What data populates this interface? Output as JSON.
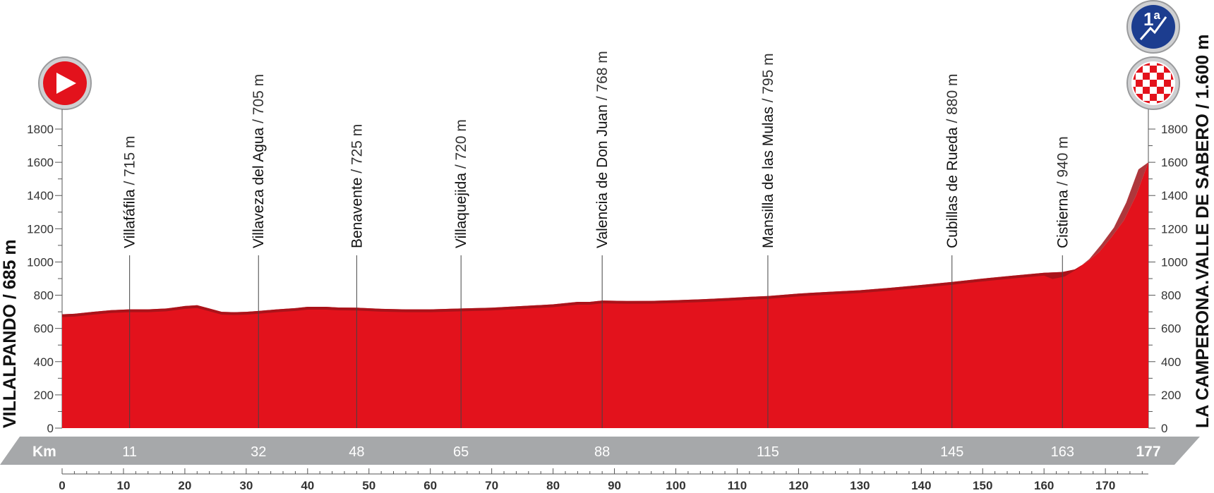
{
  "chart_data": {
    "type": "area",
    "title": "",
    "xlabel": "Km",
    "ylabel": "",
    "xlim": [
      0,
      177
    ],
    "ylim": [
      0,
      1800
    ],
    "y_ticks": [
      0,
      200,
      400,
      600,
      800,
      1000,
      1200,
      1400,
      1600,
      1800
    ],
    "x_ticks": [
      0,
      10,
      20,
      30,
      40,
      50,
      60,
      70,
      80,
      90,
      100,
      110,
      120,
      130,
      140,
      150,
      160,
      170
    ],
    "profile": {
      "x": [
        0,
        2,
        5,
        8,
        11,
        14,
        17,
        20,
        22,
        24,
        26,
        28,
        30,
        32,
        35,
        38,
        40,
        43,
        45,
        48,
        52,
        56,
        60,
        65,
        70,
        75,
        80,
        84,
        86,
        88,
        92,
        96,
        100,
        104,
        108,
        112,
        115,
        120,
        125,
        130,
        135,
        140,
        145,
        150,
        155,
        160,
        163,
        165,
        167,
        169,
        171,
        173,
        175,
        177
      ],
      "y": [
        685,
        688,
        700,
        710,
        715,
        715,
        720,
        735,
        740,
        720,
        700,
        698,
        700,
        705,
        715,
        722,
        730,
        730,
        726,
        725,
        718,
        715,
        715,
        720,
        725,
        735,
        745,
        760,
        760,
        768,
        765,
        766,
        770,
        775,
        782,
        790,
        795,
        810,
        820,
        830,
        845,
        862,
        880,
        900,
        918,
        935,
        940,
        955,
        1000,
        1060,
        1150,
        1250,
        1400,
        1600
      ]
    },
    "waypoints": [
      {
        "km": 11,
        "name": "Villafáfila",
        "alt": "715 m"
      },
      {
        "km": 32,
        "name": "Villaveza del Agua",
        "alt": "705 m"
      },
      {
        "km": 48,
        "name": "Benavente",
        "alt": "725 m"
      },
      {
        "km": 65,
        "name": "Villaquejida",
        "alt": "720 m"
      },
      {
        "km": 88,
        "name": "Valencia de Don Juan",
        "alt": "768 m"
      },
      {
        "km": 115,
        "name": "Mansilla de las Mulas",
        "alt": "795 m"
      },
      {
        "km": 145,
        "name": "Cubillas de Rueda",
        "alt": "880 m"
      },
      {
        "km": 163,
        "name": "Cistierna",
        "alt": "940 m"
      }
    ],
    "start": {
      "km": 0,
      "label": "VILLALPANDO / 685 m"
    },
    "finish": {
      "km": 177,
      "label": "LA CAMPERONA.VALLE DE SABERO / 1.600 m",
      "climb_category": "1ª"
    },
    "km_band_label": "Km",
    "km_band_values": [
      "11",
      "32",
      "48",
      "65",
      "88",
      "115",
      "145",
      "163",
      "177"
    ],
    "colors": {
      "profile": "#e3121c",
      "profile_dark": "#a0141a",
      "band": "#a6a8aa",
      "start_icon": "#e3121c",
      "climb_icon": "#1c3d8f"
    }
  }
}
